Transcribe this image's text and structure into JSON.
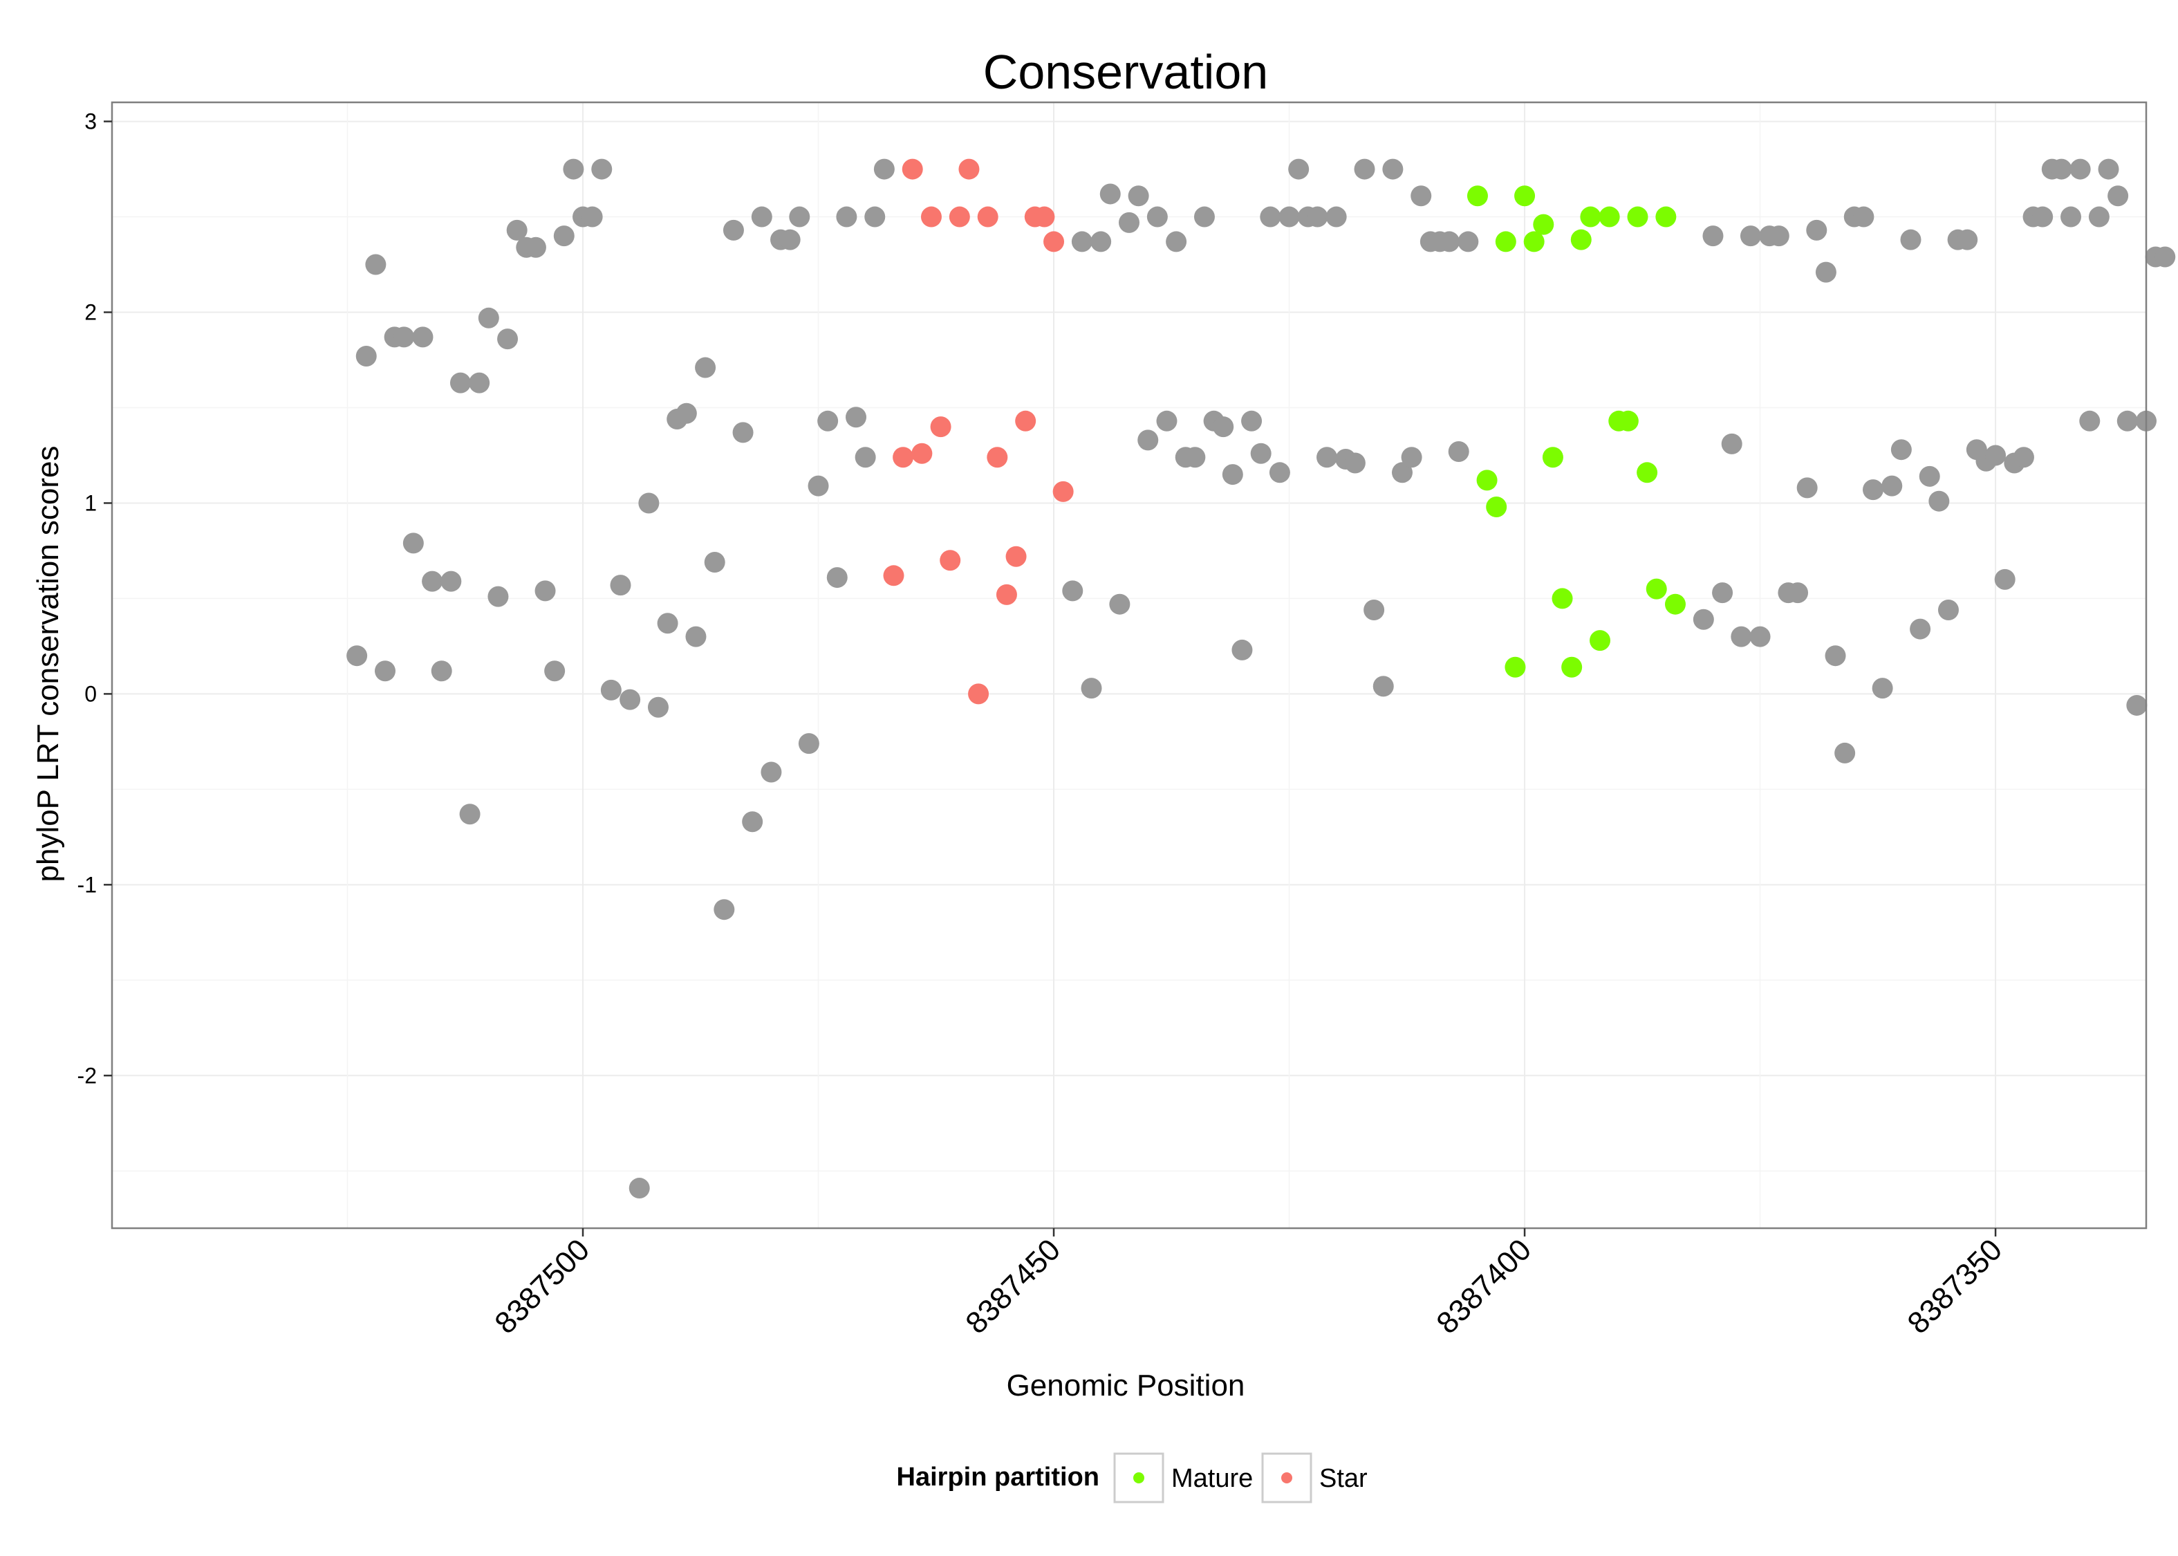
{
  "chart_data": {
    "type": "scatter",
    "title": "Conservation",
    "xlabel": "Genomic Position",
    "ylabel": "phyloP LRT conservation scores",
    "x_reversed": true,
    "xlim": [
      8387334,
      8387550
    ],
    "ylim": [
      -2.8,
      3.1
    ],
    "xticks": [
      8387500,
      8387450,
      8387400,
      8387350
    ],
    "xtick_labels": [
      "8387500",
      "8387450",
      "8387400",
      "8387350"
    ],
    "yticks": [
      -2,
      -1,
      0,
      1,
      2,
      3
    ],
    "ytick_labels": [
      "-2",
      "-1",
      "0",
      "1",
      "2",
      "3"
    ],
    "grid": true,
    "legend": {
      "title": "Hairpin partition",
      "position": "bottom",
      "entries": [
        {
          "label": "Mature",
          "color": "#7CFC00"
        },
        {
          "label": "Star",
          "color": "#F8766D"
        }
      ]
    },
    "colors": {
      "Other": "#999999",
      "Mature": "#7CFC00",
      "Star": "#F8766D"
    },
    "series": [
      {
        "name": "Other",
        "points": [
          [
            8387524,
            0.2
          ],
          [
            8387523,
            1.77
          ],
          [
            8387522,
            2.25
          ],
          [
            8387521,
            0.12
          ],
          [
            8387520,
            1.87
          ],
          [
            8387519,
            1.87
          ],
          [
            8387518,
            0.79
          ],
          [
            8387517,
            1.87
          ],
          [
            8387516,
            0.59
          ],
          [
            8387515,
            0.12
          ],
          [
            8387514,
            0.59
          ],
          [
            8387513,
            1.63
          ],
          [
            8387512,
            -0.63
          ],
          [
            8387511,
            1.63
          ],
          [
            8387510,
            1.97
          ],
          [
            8387509,
            0.51
          ],
          [
            8387508,
            1.86
          ],
          [
            8387507,
            2.43
          ],
          [
            8387506,
            2.34
          ],
          [
            8387505,
            2.34
          ],
          [
            8387504,
            0.54
          ],
          [
            8387503,
            0.12
          ],
          [
            8387502,
            2.4
          ],
          [
            8387501,
            2.75
          ],
          [
            8387500,
            2.5
          ],
          [
            8387499,
            2.5
          ],
          [
            8387498,
            2.75
          ],
          [
            8387497,
            0.02
          ],
          [
            8387496,
            0.57
          ],
          [
            8387495,
            -0.03
          ],
          [
            8387494,
            -2.59
          ],
          [
            8387493,
            1.0
          ],
          [
            8387492,
            -0.07
          ],
          [
            8387491,
            0.37
          ],
          [
            8387490,
            1.44
          ],
          [
            8387489,
            1.47
          ],
          [
            8387488,
            0.3
          ],
          [
            8387487,
            1.71
          ],
          [
            8387486,
            0.69
          ],
          [
            8387485,
            -1.13
          ],
          [
            8387484,
            2.43
          ],
          [
            8387483,
            1.37
          ],
          [
            8387482,
            -0.67
          ],
          [
            8387481,
            2.5
          ],
          [
            8387480,
            -0.41
          ],
          [
            8387479,
            2.38
          ],
          [
            8387478,
            2.38
          ],
          [
            8387477,
            2.5
          ],
          [
            8387476,
            -0.26
          ],
          [
            8387475,
            1.09
          ],
          [
            8387474,
            1.43
          ],
          [
            8387473,
            0.61
          ],
          [
            8387472,
            2.5
          ],
          [
            8387471,
            1.45
          ],
          [
            8387470,
            1.24
          ],
          [
            8387469,
            2.5
          ],
          [
            8387468,
            2.75
          ],
          [
            8387448,
            0.54
          ],
          [
            8387447,
            2.37
          ],
          [
            8387446,
            0.03
          ],
          [
            8387445,
            2.37
          ],
          [
            8387444,
            2.62
          ],
          [
            8387443,
            0.47
          ],
          [
            8387442,
            2.47
          ],
          [
            8387441,
            2.61
          ],
          [
            8387440,
            1.33
          ],
          [
            8387439,
            2.5
          ],
          [
            8387438,
            1.43
          ],
          [
            8387437,
            2.37
          ],
          [
            8387436,
            1.24
          ],
          [
            8387435,
            1.24
          ],
          [
            8387434,
            2.5
          ],
          [
            8387433,
            1.43
          ],
          [
            8387432,
            1.4
          ],
          [
            8387431,
            1.15
          ],
          [
            8387430,
            0.23
          ],
          [
            8387429,
            1.43
          ],
          [
            8387428,
            1.26
          ],
          [
            8387427,
            2.5
          ],
          [
            8387426,
            1.16
          ],
          [
            8387425,
            2.5
          ],
          [
            8387424,
            2.75
          ],
          [
            8387423,
            2.5
          ],
          [
            8387422,
            2.5
          ],
          [
            8387421,
            1.24
          ],
          [
            8387420,
            2.5
          ],
          [
            8387419,
            1.23
          ],
          [
            8387418,
            1.21
          ],
          [
            8387417,
            2.75
          ],
          [
            8387416,
            0.44
          ],
          [
            8387415,
            0.04
          ],
          [
            8387414,
            2.75
          ],
          [
            8387413,
            1.16
          ],
          [
            8387412,
            1.24
          ],
          [
            8387411,
            2.61
          ],
          [
            8387410,
            2.37
          ],
          [
            8387409,
            2.37
          ],
          [
            8387408,
            2.37
          ],
          [
            8387407,
            1.27
          ],
          [
            8387406,
            2.37
          ],
          [
            8387381,
            0.39
          ],
          [
            8387380,
            2.4
          ],
          [
            8387379,
            0.53
          ],
          [
            8387378,
            1.31
          ],
          [
            8387377,
            0.3
          ],
          [
            8387376,
            2.4
          ],
          [
            8387375,
            0.3
          ],
          [
            8387374,
            2.4
          ],
          [
            8387373,
            2.4
          ],
          [
            8387372,
            0.53
          ],
          [
            8387371,
            0.53
          ],
          [
            8387370,
            1.08
          ],
          [
            8387369,
            2.43
          ],
          [
            8387368,
            2.21
          ],
          [
            8387367,
            0.2
          ],
          [
            8387366,
            -0.31
          ],
          [
            8387365,
            2.5
          ],
          [
            8387364,
            2.5
          ],
          [
            8387363,
            1.07
          ],
          [
            8387362,
            0.03
          ],
          [
            8387361,
            1.09
          ],
          [
            8387360,
            1.28
          ],
          [
            8387359,
            2.38
          ],
          [
            8387358,
            0.34
          ],
          [
            8387357,
            1.14
          ],
          [
            8387356,
            1.01
          ],
          [
            8387355,
            0.44
          ],
          [
            8387354,
            2.38
          ],
          [
            8387353,
            2.38
          ],
          [
            8387352,
            1.28
          ],
          [
            8387351,
            1.22
          ],
          [
            8387350,
            1.25
          ],
          [
            8387349,
            0.6
          ],
          [
            8387348,
            1.21
          ],
          [
            8387347,
            1.24
          ],
          [
            8387346,
            2.5
          ],
          [
            8387345,
            2.5
          ],
          [
            8387344,
            2.75
          ],
          [
            8387343,
            2.75
          ],
          [
            8387342,
            2.5
          ],
          [
            8387341,
            2.75
          ],
          [
            8387340,
            1.43
          ],
          [
            8387339,
            2.5
          ],
          [
            8387338,
            2.75
          ],
          [
            8387337,
            2.61
          ],
          [
            8387336,
            1.43
          ],
          [
            8387335,
            -0.06
          ],
          [
            8387334,
            1.43
          ],
          [
            8387333,
            2.29
          ],
          [
            8387332,
            2.29
          ]
        ]
      },
      {
        "name": "Star",
        "points": [
          [
            8387467,
            0.62
          ],
          [
            8387466,
            1.24
          ],
          [
            8387465,
            2.75
          ],
          [
            8387464,
            1.26
          ],
          [
            8387463,
            2.5
          ],
          [
            8387462,
            1.4
          ],
          [
            8387461,
            0.7
          ],
          [
            8387460,
            2.5
          ],
          [
            8387459,
            2.75
          ],
          [
            8387458,
            0.0
          ],
          [
            8387457,
            2.5
          ],
          [
            8387456,
            1.24
          ],
          [
            8387455,
            0.52
          ],
          [
            8387454,
            0.72
          ],
          [
            8387453,
            1.43
          ],
          [
            8387452,
            2.5
          ],
          [
            8387451,
            2.5
          ],
          [
            8387450,
            2.37
          ],
          [
            8387449,
            1.06
          ]
        ]
      },
      {
        "name": "Mature",
        "points": [
          [
            8387405,
            2.61
          ],
          [
            8387404,
            1.12
          ],
          [
            8387403,
            0.98
          ],
          [
            8387402,
            2.37
          ],
          [
            8387401,
            0.14
          ],
          [
            8387400,
            2.61
          ],
          [
            8387399,
            2.37
          ],
          [
            8387398,
            2.46
          ],
          [
            8387397,
            1.24
          ],
          [
            8387396,
            0.5
          ],
          [
            8387395,
            0.14
          ],
          [
            8387394,
            2.38
          ],
          [
            8387393,
            2.5
          ],
          [
            8387392,
            0.28
          ],
          [
            8387391,
            2.5
          ],
          [
            8387390,
            1.43
          ],
          [
            8387389,
            1.43
          ],
          [
            8387388,
            2.5
          ],
          [
            8387387,
            1.16
          ],
          [
            8387386,
            0.55
          ],
          [
            8387385,
            2.5
          ],
          [
            8387384,
            0.47
          ]
        ]
      }
    ]
  }
}
